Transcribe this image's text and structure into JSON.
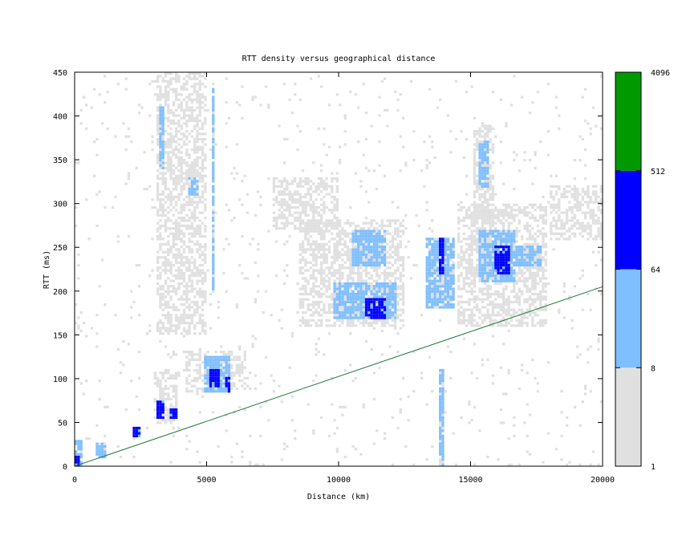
{
  "chart_data": {
    "type": "heatmap",
    "title": "RTT density versus geographical distance",
    "xlabel": "Distance (km)",
    "ylabel": "RTT (ms)",
    "xlim": [
      0,
      20000
    ],
    "ylim": [
      0,
      450
    ],
    "x_ticks": [
      "0",
      "5000",
      "10000",
      "15000",
      "20000"
    ],
    "y_ticks": [
      "0",
      "50",
      "100",
      "150",
      "200",
      "250",
      "300",
      "350",
      "400",
      "450"
    ],
    "grid": false,
    "colorbar": {
      "scale": "log",
      "tick_labels": [
        "1",
        "8",
        "64",
        "512",
        "4096"
      ],
      "bands": [
        {
          "from": 1,
          "to": 8,
          "color": "#e0e0e0"
        },
        {
          "from": 8,
          "to": 64,
          "color": "#80bfff"
        },
        {
          "from": 64,
          "to": 512,
          "color": "#0000ff"
        },
        {
          "from": 512,
          "to": 4096,
          "color": "#009900"
        }
      ]
    },
    "reference_line": {
      "color": "#1f7a3a",
      "points": [
        [
          0,
          0
        ],
        [
          20000,
          205
        ]
      ]
    },
    "density_regions": [
      {
        "x": [
          0,
          300
        ],
        "y": [
          0,
          30
        ],
        "level": 2
      },
      {
        "x": [
          0,
          200
        ],
        "y": [
          0,
          10
        ],
        "level": 3
      },
      {
        "x": [
          800,
          1200
        ],
        "y": [
          10,
          25
        ],
        "level": 2
      },
      {
        "x": [
          2200,
          2500
        ],
        "y": [
          35,
          45
        ],
        "level": 3
      },
      {
        "x": [
          3000,
          3900
        ],
        "y": [
          50,
          110
        ],
        "level": 1
      },
      {
        "x": [
          3100,
          3400
        ],
        "y": [
          55,
          75
        ],
        "level": 3
      },
      {
        "x": [
          3600,
          3900
        ],
        "y": [
          55,
          65
        ],
        "level": 3
      },
      {
        "x": [
          3100,
          5000
        ],
        "y": [
          150,
          450
        ],
        "level": 1
      },
      {
        "x": [
          3200,
          3400
        ],
        "y": [
          340,
          410
        ],
        "level": 2
      },
      {
        "x": [
          4300,
          4700
        ],
        "y": [
          310,
          330
        ],
        "level": 2
      },
      {
        "x": [
          5200,
          5300
        ],
        "y": [
          200,
          430
        ],
        "level": 2
      },
      {
        "x": [
          4200,
          6500
        ],
        "y": [
          85,
          130
        ],
        "level": 1
      },
      {
        "x": [
          4900,
          5900
        ],
        "y": [
          85,
          125
        ],
        "level": 2
      },
      {
        "x": [
          5100,
          5500
        ],
        "y": [
          90,
          110
        ],
        "level": 3
      },
      {
        "x": [
          5700,
          5900
        ],
        "y": [
          85,
          100
        ],
        "level": 3
      },
      {
        "x": [
          7500,
          10000
        ],
        "y": [
          270,
          330
        ],
        "level": 1
      },
      {
        "x": [
          8500,
          12500
        ],
        "y": [
          160,
          280
        ],
        "level": 1
      },
      {
        "x": [
          9800,
          12200
        ],
        "y": [
          170,
          210
        ],
        "level": 2
      },
      {
        "x": [
          10500,
          11800
        ],
        "y": [
          230,
          270
        ],
        "level": 2
      },
      {
        "x": [
          11000,
          11800
        ],
        "y": [
          170,
          190
        ],
        "level": 3
      },
      {
        "x": [
          13300,
          14400
        ],
        "y": [
          180,
          260
        ],
        "level": 2
      },
      {
        "x": [
          13800,
          14000
        ],
        "y": [
          220,
          260
        ],
        "level": 3
      },
      {
        "x": [
          13800,
          14000
        ],
        "y": [
          0,
          110
        ],
        "level": 2
      },
      {
        "x": [
          14500,
          17900
        ],
        "y": [
          160,
          300
        ],
        "level": 1
      },
      {
        "x": [
          15300,
          16700
        ],
        "y": [
          210,
          270
        ],
        "level": 2
      },
      {
        "x": [
          15900,
          16500
        ],
        "y": [
          220,
          250
        ],
        "level": 3
      },
      {
        "x": [
          15100,
          15900
        ],
        "y": [
          280,
          390
        ],
        "level": 1
      },
      {
        "x": [
          15300,
          15700
        ],
        "y": [
          320,
          370
        ],
        "level": 2
      },
      {
        "x": [
          16700,
          17700
        ],
        "y": [
          230,
          250
        ],
        "level": 2
      },
      {
        "x": [
          18000,
          20000
        ],
        "y": [
          260,
          320
        ],
        "level": 1
      }
    ]
  }
}
